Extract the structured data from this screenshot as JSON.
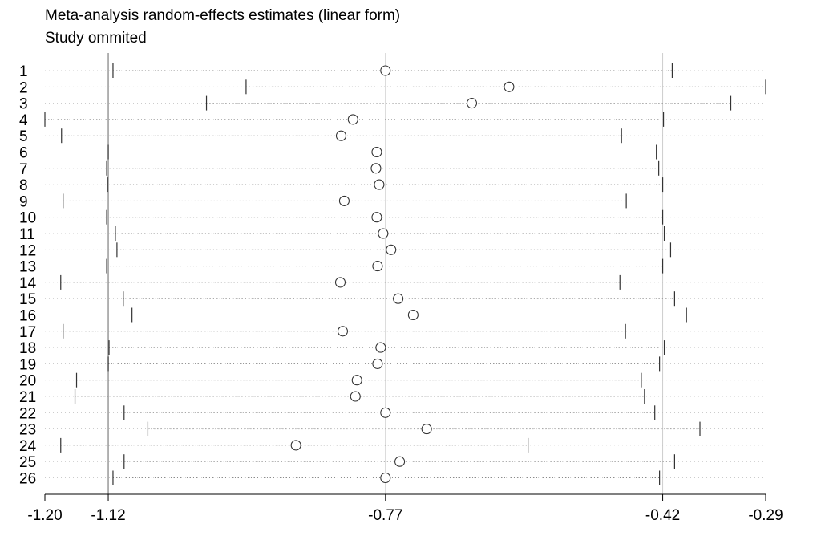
{
  "title": "Meta-analysis random-effects estimates (linear form)",
  "subtitle": "Study ommited",
  "colors": {
    "reference_line": "#808080",
    "grid_line": "#cccccc",
    "ci_line": "#888888",
    "point": "#333333",
    "axis": "#000000"
  },
  "chart_data": {
    "type": "forest",
    "title": "Meta-analysis random-effects estimates (linear form)",
    "subtitle": "Study ommited",
    "xlim": [
      -1.2,
      -0.29
    ],
    "x_ticks": [
      -1.2,
      -1.12,
      -0.77,
      -0.42,
      -0.29
    ],
    "x_tick_labels": [
      "-1.20",
      "-1.12",
      "-0.77",
      "-0.42",
      "-0.29"
    ],
    "reference_lines": [
      -1.12,
      -0.77,
      -0.42
    ],
    "studies": [
      {
        "label": "1",
        "estimate": -0.77,
        "lower": -1.114,
        "upper": -0.408
      },
      {
        "label": "2",
        "estimate": -0.614,
        "lower": -0.946,
        "upper": -0.29
      },
      {
        "label": "3",
        "estimate": -0.661,
        "lower": -0.996,
        "upper": -0.334
      },
      {
        "label": "4",
        "estimate": -0.811,
        "lower": -1.2,
        "upper": -0.419
      },
      {
        "label": "5",
        "estimate": -0.826,
        "lower": -1.179,
        "upper": -0.472
      },
      {
        "label": "6",
        "estimate": -0.781,
        "lower": -1.12,
        "upper": -0.428
      },
      {
        "label": "7",
        "estimate": -0.782,
        "lower": -1.122,
        "upper": -0.425
      },
      {
        "label": "8",
        "estimate": -0.778,
        "lower": -1.121,
        "upper": -0.42
      },
      {
        "label": "9",
        "estimate": -0.822,
        "lower": -1.177,
        "upper": -0.466
      },
      {
        "label": "10",
        "estimate": -0.781,
        "lower": -1.122,
        "upper": -0.42
      },
      {
        "label": "11",
        "estimate": -0.773,
        "lower": -1.111,
        "upper": -0.418
      },
      {
        "label": "12",
        "estimate": -0.763,
        "lower": -1.109,
        "upper": -0.41
      },
      {
        "label": "13",
        "estimate": -0.78,
        "lower": -1.122,
        "upper": -0.42
      },
      {
        "label": "14",
        "estimate": -0.827,
        "lower": -1.18,
        "upper": -0.474
      },
      {
        "label": "15",
        "estimate": -0.754,
        "lower": -1.101,
        "upper": -0.405
      },
      {
        "label": "16",
        "estimate": -0.735,
        "lower": -1.09,
        "upper": -0.39
      },
      {
        "label": "17",
        "estimate": -0.824,
        "lower": -1.177,
        "upper": -0.467
      },
      {
        "label": "18",
        "estimate": -0.776,
        "lower": -1.119,
        "upper": -0.418
      },
      {
        "label": "19",
        "estimate": -0.78,
        "lower": -1.12,
        "upper": -0.424
      },
      {
        "label": "20",
        "estimate": -0.806,
        "lower": -1.16,
        "upper": -0.447
      },
      {
        "label": "21",
        "estimate": -0.808,
        "lower": -1.162,
        "upper": -0.443
      },
      {
        "label": "22",
        "estimate": -0.77,
        "lower": -1.1,
        "upper": -0.43
      },
      {
        "label": "23",
        "estimate": -0.718,
        "lower": -1.07,
        "upper": -0.373
      },
      {
        "label": "24",
        "estimate": -0.883,
        "lower": -1.18,
        "upper": -0.59
      },
      {
        "label": "25",
        "estimate": -0.752,
        "lower": -1.1,
        "upper": -0.405
      },
      {
        "label": "26",
        "estimate": -0.77,
        "lower": -1.114,
        "upper": -0.424
      }
    ]
  }
}
